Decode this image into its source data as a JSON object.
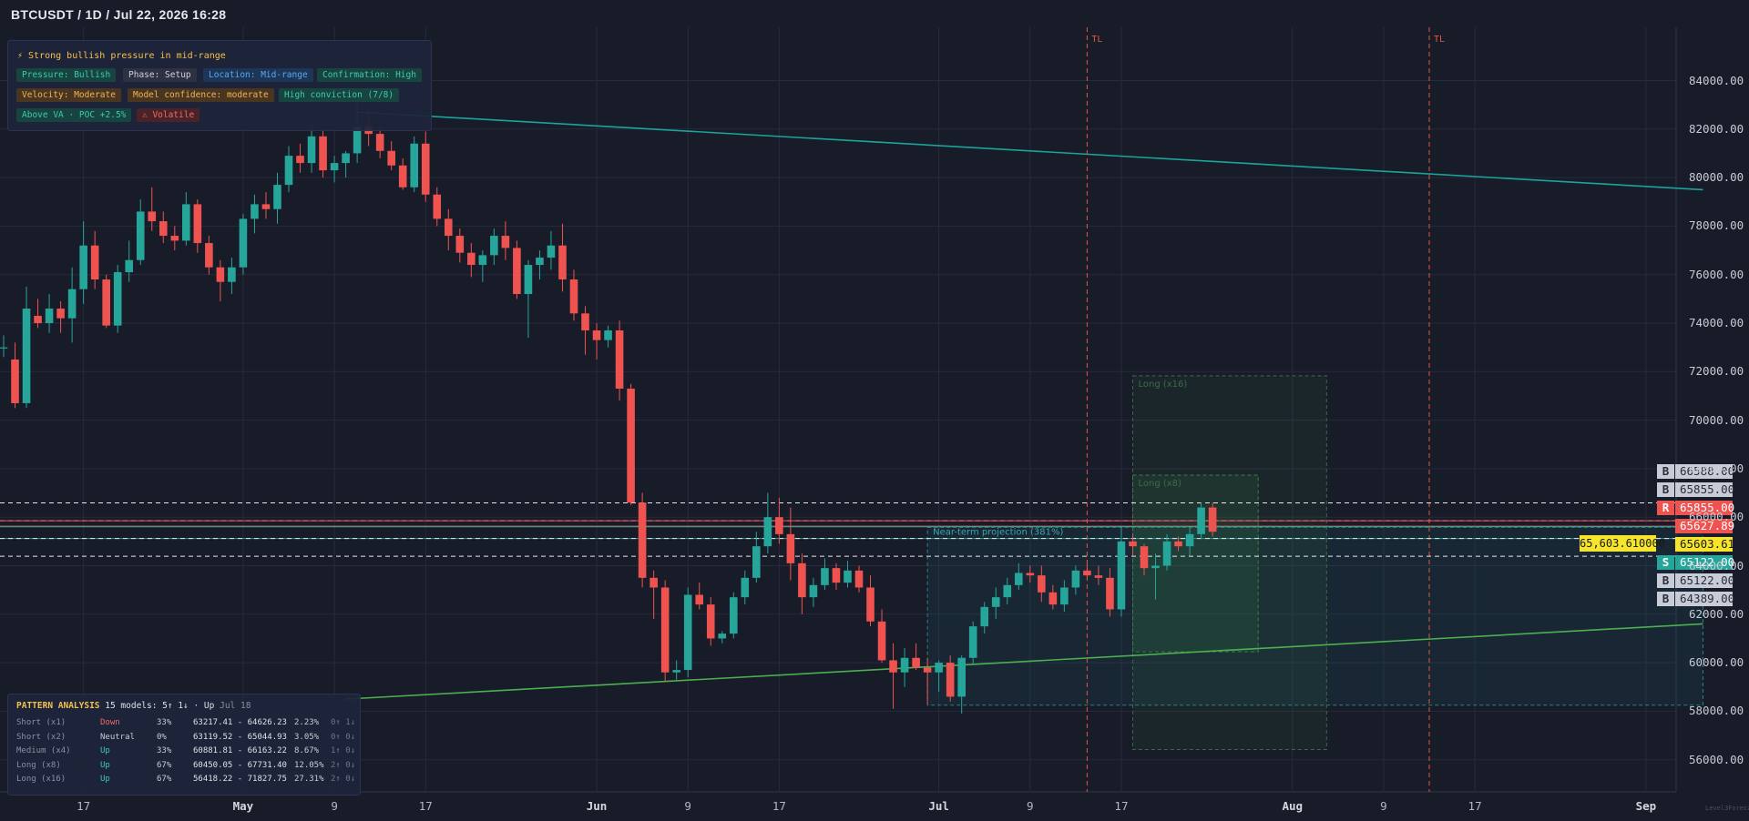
{
  "title": "BTCUSDT / 1D / Jul 22, 2026 16:28",
  "info": {
    "headline": "⚡  Strong bullish pressure in mid-range",
    "tags": [
      {
        "text": "Pressure: Bullish",
        "style": "teal"
      },
      {
        "text": "Phase: Setup",
        "style": "grey"
      },
      {
        "text": "Location: Mid-range",
        "style": "blue"
      },
      {
        "text": "Confirmation: High",
        "style": "teal"
      },
      {
        "text": "Velocity: Moderate",
        "style": "orange"
      },
      {
        "text": "Model confidence: moderate",
        "style": "orange"
      },
      {
        "text": "High conviction (7/8)",
        "style": "teal"
      },
      {
        "text": "Above VA · POC +2.5%",
        "style": "teal"
      },
      {
        "text": "⚠ Volatile",
        "style": "red"
      }
    ]
  },
  "pattern": {
    "label": "PATTERN ANALYSIS",
    "summary": "15 models: 5↑ 1↓ · Up",
    "date": "Jul 18",
    "rows": [
      {
        "name": "Short (x1)",
        "dir": "Down",
        "pct": "33%",
        "range": "63217.41 - 64626.23",
        "chg": "2.23%",
        "arrows": "0↑ 1↓"
      },
      {
        "name": "Short (x2)",
        "dir": "Neutral",
        "pct": "0%",
        "range": "63119.52 - 65044.93",
        "chg": "3.05%",
        "arrows": "0↑ 0↓"
      },
      {
        "name": "Medium (x4)",
        "dir": "Up",
        "pct": "33%",
        "range": "60881.81 - 66163.22",
        "chg": "8.67%",
        "arrows": "1↑ 0↓"
      },
      {
        "name": "Long (x8)",
        "dir": "Up",
        "pct": "67%",
        "range": "60450.05 - 67731.40",
        "chg": "12.05%",
        "arrows": "2↑ 0↓"
      },
      {
        "name": "Long (x16)",
        "dir": "Up",
        "pct": "67%",
        "range": "56418.22 - 71827.75",
        "chg": "27.31%",
        "arrows": "2↑ 0↓"
      }
    ]
  },
  "levels": [
    {
      "badge": "B",
      "value": "66588.00",
      "kind": "buy",
      "price": 66588
    },
    {
      "badge": "B",
      "value": "65855.00",
      "kind": "buy",
      "price": 65855
    },
    {
      "badge": "R",
      "value": "65855.00",
      "kind": "resistance",
      "price": 65855
    },
    {
      "badge": "",
      "value": "65627.89",
      "kind": "red",
      "price": 65627.89
    },
    {
      "badge": "",
      "value": "65603.61",
      "kind": "current",
      "price": 65603.61
    },
    {
      "badge": "S",
      "value": "65122.00",
      "kind": "support",
      "price": 65122
    },
    {
      "badge": "B",
      "value": "65122.00",
      "kind": "buy",
      "price": 65122
    },
    {
      "badge": "B",
      "value": "64389.00",
      "kind": "buy",
      "price": 64389
    }
  ],
  "crosshair_price": "65,603.610000",
  "tl_label": "TL",
  "projection_label": "Near-term projection (381%)",
  "long_x8_label": "Long (x8)",
  "long_x16_label": "Long (x16)",
  "watermark": "Level3Forecast.com",
  "colors": {
    "up": "#26a69a",
    "down": "#ef5350",
    "teal_line": "#1aa59a",
    "green_line": "#4caf50",
    "tl": "#e0583a"
  },
  "chart_data": {
    "type": "candlestick",
    "price_range": [
      55000,
      86000
    ],
    "y_ticks": [
      "84000.00",
      "82000.00",
      "80000.00",
      "78000.00",
      "76000.00",
      "74000.00",
      "72000.00",
      "70000.00",
      "68000.00",
      "66000.00",
      "64000.00",
      "62000.00",
      "60000.00",
      "58000.00",
      "56000.00"
    ],
    "x_ticks": [
      {
        "label": "17",
        "date": "2026-04-17",
        "bold": false
      },
      {
        "label": "May",
        "date": "2026-05-01",
        "bold": true
      },
      {
        "label": "9",
        "date": "2026-05-09",
        "bold": false
      },
      {
        "label": "17",
        "date": "2026-05-17",
        "bold": false
      },
      {
        "label": "Jun",
        "date": "2026-06-01",
        "bold": true
      },
      {
        "label": "9",
        "date": "2026-06-09",
        "bold": false
      },
      {
        "label": "17",
        "date": "2026-06-17",
        "bold": false
      },
      {
        "label": "Jul",
        "date": "2026-07-01",
        "bold": true
      },
      {
        "label": "9",
        "date": "2026-07-09",
        "bold": false
      },
      {
        "label": "17",
        "date": "2026-07-17",
        "bold": false
      },
      {
        "label": "Aug",
        "date": "2026-08-01",
        "bold": true
      },
      {
        "label": "9",
        "date": "2026-08-09",
        "bold": false
      },
      {
        "label": "17",
        "date": "2026-08-17",
        "bold": false
      },
      {
        "label": "Sep",
        "date": "2026-09-01",
        "bold": true
      }
    ],
    "candles": [
      {
        "date": "2026-04-10",
        "o": 73000,
        "h": 73500,
        "l": 72600,
        "c": 73000
      },
      {
        "date": "2026-04-11",
        "o": 72500,
        "h": 73200,
        "l": 70500,
        "c": 70700
      },
      {
        "date": "2026-04-12",
        "o": 70700,
        "h": 75500,
        "l": 70500,
        "c": 74600
      },
      {
        "date": "2026-04-13",
        "o": 74300,
        "h": 75000,
        "l": 73800,
        "c": 74000
      },
      {
        "date": "2026-04-14",
        "o": 74000,
        "h": 75200,
        "l": 73600,
        "c": 74600
      },
      {
        "date": "2026-04-15",
        "o": 74600,
        "h": 74900,
        "l": 73600,
        "c": 74200
      },
      {
        "date": "2026-04-16",
        "o": 74200,
        "h": 76300,
        "l": 73200,
        "c": 75400
      },
      {
        "date": "2026-04-17",
        "o": 75400,
        "h": 78200,
        "l": 74800,
        "c": 77200
      },
      {
        "date": "2026-04-18",
        "o": 77200,
        "h": 77800,
        "l": 75400,
        "c": 75800
      },
      {
        "date": "2026-04-19",
        "o": 75800,
        "h": 76000,
        "l": 73800,
        "c": 73900
      },
      {
        "date": "2026-04-20",
        "o": 73900,
        "h": 76400,
        "l": 73600,
        "c": 76100
      },
      {
        "date": "2026-04-21",
        "o": 76100,
        "h": 77400,
        "l": 75700,
        "c": 76600
      },
      {
        "date": "2026-04-22",
        "o": 76600,
        "h": 79100,
        "l": 76400,
        "c": 78600
      },
      {
        "date": "2026-04-23",
        "o": 78600,
        "h": 79600,
        "l": 77800,
        "c": 78200
      },
      {
        "date": "2026-04-24",
        "o": 78200,
        "h": 78600,
        "l": 77300,
        "c": 77600
      },
      {
        "date": "2026-04-25",
        "o": 77600,
        "h": 78000,
        "l": 77000,
        "c": 77400
      },
      {
        "date": "2026-04-26",
        "o": 77400,
        "h": 79400,
        "l": 77200,
        "c": 78900
      },
      {
        "date": "2026-04-27",
        "o": 78900,
        "h": 79100,
        "l": 76900,
        "c": 77300
      },
      {
        "date": "2026-04-28",
        "o": 77300,
        "h": 77600,
        "l": 76000,
        "c": 76300
      },
      {
        "date": "2026-04-29",
        "o": 76300,
        "h": 76600,
        "l": 74900,
        "c": 75700
      },
      {
        "date": "2026-04-30",
        "o": 75700,
        "h": 76700,
        "l": 75200,
        "c": 76300
      },
      {
        "date": "2026-05-01",
        "o": 76300,
        "h": 78500,
        "l": 76000,
        "c": 78300
      },
      {
        "date": "2026-05-02",
        "o": 78300,
        "h": 79300,
        "l": 77700,
        "c": 78900
      },
      {
        "date": "2026-05-03",
        "o": 78900,
        "h": 79400,
        "l": 78300,
        "c": 78700
      },
      {
        "date": "2026-05-04",
        "o": 78700,
        "h": 80200,
        "l": 78100,
        "c": 79700
      },
      {
        "date": "2026-05-05",
        "o": 79700,
        "h": 81300,
        "l": 79400,
        "c": 80900
      },
      {
        "date": "2026-05-06",
        "o": 80900,
        "h": 81400,
        "l": 80200,
        "c": 80600
      },
      {
        "date": "2026-05-07",
        "o": 80600,
        "h": 82300,
        "l": 80200,
        "c": 81700
      },
      {
        "date": "2026-05-08",
        "o": 81700,
        "h": 82000,
        "l": 80000,
        "c": 80300
      },
      {
        "date": "2026-05-09",
        "o": 80300,
        "h": 80900,
        "l": 79800,
        "c": 80600
      },
      {
        "date": "2026-05-10",
        "o": 80600,
        "h": 81100,
        "l": 80000,
        "c": 81000
      },
      {
        "date": "2026-05-11",
        "o": 81000,
        "h": 83500,
        "l": 80600,
        "c": 82100
      },
      {
        "date": "2026-05-12",
        "o": 82100,
        "h": 82700,
        "l": 81300,
        "c": 81800
      },
      {
        "date": "2026-05-13",
        "o": 81800,
        "h": 82100,
        "l": 80800,
        "c": 81100
      },
      {
        "date": "2026-05-14",
        "o": 81100,
        "h": 81500,
        "l": 80300,
        "c": 80500
      },
      {
        "date": "2026-05-15",
        "o": 80500,
        "h": 80800,
        "l": 79500,
        "c": 79600
      },
      {
        "date": "2026-05-16",
        "o": 79600,
        "h": 81700,
        "l": 79400,
        "c": 81400
      },
      {
        "date": "2026-05-17",
        "o": 81400,
        "h": 81900,
        "l": 79000,
        "c": 79300
      },
      {
        "date": "2026-05-18",
        "o": 79300,
        "h": 79600,
        "l": 78000,
        "c": 78300
      },
      {
        "date": "2026-05-19",
        "o": 78300,
        "h": 78700,
        "l": 77000,
        "c": 77600
      },
      {
        "date": "2026-05-20",
        "o": 77600,
        "h": 77900,
        "l": 76500,
        "c": 76900
      },
      {
        "date": "2026-05-21",
        "o": 76900,
        "h": 77300,
        "l": 75900,
        "c": 76400
      },
      {
        "date": "2026-05-22",
        "o": 76400,
        "h": 77000,
        "l": 75700,
        "c": 76800
      },
      {
        "date": "2026-05-23",
        "o": 76800,
        "h": 77900,
        "l": 76400,
        "c": 77600
      },
      {
        "date": "2026-05-24",
        "o": 77600,
        "h": 78200,
        "l": 76600,
        "c": 77100
      },
      {
        "date": "2026-05-25",
        "o": 77100,
        "h": 77400,
        "l": 75000,
        "c": 75200
      },
      {
        "date": "2026-05-26",
        "o": 75200,
        "h": 76600,
        "l": 73400,
        "c": 76400
      },
      {
        "date": "2026-05-27",
        "o": 76400,
        "h": 77000,
        "l": 75800,
        "c": 76700
      },
      {
        "date": "2026-05-28",
        "o": 76700,
        "h": 77800,
        "l": 76200,
        "c": 77200
      },
      {
        "date": "2026-05-29",
        "o": 77200,
        "h": 78100,
        "l": 75300,
        "c": 75800
      },
      {
        "date": "2026-05-30",
        "o": 75800,
        "h": 76200,
        "l": 74100,
        "c": 74400
      },
      {
        "date": "2026-05-31",
        "o": 74400,
        "h": 74700,
        "l": 72700,
        "c": 73700
      },
      {
        "date": "2026-06-01",
        "o": 73700,
        "h": 74000,
        "l": 72500,
        "c": 73300
      },
      {
        "date": "2026-06-02",
        "o": 73300,
        "h": 73900,
        "l": 73000,
        "c": 73700
      },
      {
        "date": "2026-06-03",
        "o": 73700,
        "h": 74100,
        "l": 70800,
        "c": 71300
      },
      {
        "date": "2026-06-04",
        "o": 71300,
        "h": 71500,
        "l": 66500,
        "c": 66600
      },
      {
        "date": "2026-06-05",
        "o": 66600,
        "h": 67000,
        "l": 63100,
        "c": 63500
      },
      {
        "date": "2026-06-06",
        "o": 63500,
        "h": 63800,
        "l": 61800,
        "c": 63100
      },
      {
        "date": "2026-06-07",
        "o": 63100,
        "h": 63400,
        "l": 59200,
        "c": 59600
      },
      {
        "date": "2026-06-08",
        "o": 59600,
        "h": 60100,
        "l": 59300,
        "c": 59700
      },
      {
        "date": "2026-06-09",
        "o": 59700,
        "h": 63100,
        "l": 59400,
        "c": 62800
      },
      {
        "date": "2026-06-10",
        "o": 62800,
        "h": 63300,
        "l": 62200,
        "c": 62400
      },
      {
        "date": "2026-06-11",
        "o": 62400,
        "h": 62700,
        "l": 60700,
        "c": 61000
      },
      {
        "date": "2026-06-12",
        "o": 61000,
        "h": 61300,
        "l": 60800,
        "c": 61200
      },
      {
        "date": "2026-06-13",
        "o": 61200,
        "h": 62900,
        "l": 61000,
        "c": 62700
      },
      {
        "date": "2026-06-14",
        "o": 62700,
        "h": 63800,
        "l": 62400,
        "c": 63500
      },
      {
        "date": "2026-06-15",
        "o": 63500,
        "h": 65400,
        "l": 63300,
        "c": 64800
      },
      {
        "date": "2026-06-16",
        "o": 64800,
        "h": 67000,
        "l": 64500,
        "c": 66000
      },
      {
        "date": "2026-06-17",
        "o": 66000,
        "h": 66800,
        "l": 64900,
        "c": 65300
      },
      {
        "date": "2026-06-18",
        "o": 65300,
        "h": 66400,
        "l": 63400,
        "c": 64100
      },
      {
        "date": "2026-06-19",
        "o": 64100,
        "h": 64500,
        "l": 62000,
        "c": 62700
      },
      {
        "date": "2026-06-20",
        "o": 62700,
        "h": 63500,
        "l": 62300,
        "c": 63200
      },
      {
        "date": "2026-06-21",
        "o": 63200,
        "h": 64300,
        "l": 63000,
        "c": 63900
      },
      {
        "date": "2026-06-22",
        "o": 63900,
        "h": 64100,
        "l": 63000,
        "c": 63300
      },
      {
        "date": "2026-06-23",
        "o": 63300,
        "h": 64200,
        "l": 63100,
        "c": 63800
      },
      {
        "date": "2026-06-24",
        "o": 63800,
        "h": 64000,
        "l": 62900,
        "c": 63100
      },
      {
        "date": "2026-06-25",
        "o": 63100,
        "h": 63600,
        "l": 61500,
        "c": 61700
      },
      {
        "date": "2026-06-26",
        "o": 61700,
        "h": 62200,
        "l": 60000,
        "c": 60100
      },
      {
        "date": "2026-06-27",
        "o": 60100,
        "h": 60800,
        "l": 58100,
        "c": 59600
      },
      {
        "date": "2026-06-28",
        "o": 59600,
        "h": 60600,
        "l": 59000,
        "c": 60200
      },
      {
        "date": "2026-06-29",
        "o": 60200,
        "h": 60800,
        "l": 59700,
        "c": 59800
      },
      {
        "date": "2026-06-30",
        "o": 59800,
        "h": 60200,
        "l": 58300,
        "c": 59600
      },
      {
        "date": "2026-07-01",
        "o": 59600,
        "h": 60100,
        "l": 58800,
        "c": 60000
      },
      {
        "date": "2026-07-02",
        "o": 60000,
        "h": 60300,
        "l": 58400,
        "c": 58600
      },
      {
        "date": "2026-07-03",
        "o": 58600,
        "h": 60300,
        "l": 57900,
        "c": 60200
      },
      {
        "date": "2026-07-04",
        "o": 60200,
        "h": 61700,
        "l": 59900,
        "c": 61500
      },
      {
        "date": "2026-07-05",
        "o": 61500,
        "h": 62500,
        "l": 61200,
        "c": 62300
      },
      {
        "date": "2026-07-06",
        "o": 62300,
        "h": 63100,
        "l": 61800,
        "c": 62700
      },
      {
        "date": "2026-07-07",
        "o": 62700,
        "h": 63500,
        "l": 62400,
        "c": 63200
      },
      {
        "date": "2026-07-08",
        "o": 63200,
        "h": 64100,
        "l": 63000,
        "c": 63700
      },
      {
        "date": "2026-07-09",
        "o": 63700,
        "h": 64000,
        "l": 63300,
        "c": 63600
      },
      {
        "date": "2026-07-10",
        "o": 63600,
        "h": 64000,
        "l": 62500,
        "c": 62900
      },
      {
        "date": "2026-07-11",
        "o": 62900,
        "h": 63200,
        "l": 62200,
        "c": 62400
      },
      {
        "date": "2026-07-12",
        "o": 62400,
        "h": 63400,
        "l": 62100,
        "c": 63100
      },
      {
        "date": "2026-07-13",
        "o": 63100,
        "h": 64000,
        "l": 62800,
        "c": 63800
      },
      {
        "date": "2026-07-14",
        "o": 63800,
        "h": 64100,
        "l": 63500,
        "c": 63600
      },
      {
        "date": "2026-07-15",
        "o": 63600,
        "h": 64000,
        "l": 63200,
        "c": 63500
      },
      {
        "date": "2026-07-16",
        "o": 63500,
        "h": 63900,
        "l": 61900,
        "c": 62200
      },
      {
        "date": "2026-07-17",
        "o": 62200,
        "h": 65600,
        "l": 61900,
        "c": 65000
      },
      {
        "date": "2026-07-18",
        "o": 65000,
        "h": 65300,
        "l": 64400,
        "c": 64800
      },
      {
        "date": "2026-07-19",
        "o": 64800,
        "h": 64900,
        "l": 63600,
        "c": 63900
      },
      {
        "date": "2026-07-20",
        "o": 63900,
        "h": 64500,
        "l": 62600,
        "c": 64000
      },
      {
        "date": "2026-07-21",
        "o": 64000,
        "h": 65300,
        "l": 63800,
        "c": 65000
      },
      {
        "date": "2026-07-22",
        "o": 65000,
        "h": 65200,
        "l": 64600,
        "c": 64800
      },
      {
        "date": "2026-07-23",
        "o": 64800,
        "h": 65600,
        "l": 64400,
        "c": 65300
      },
      {
        "date": "2026-07-24",
        "o": 65300,
        "h": 66600,
        "l": 65100,
        "c": 66400
      },
      {
        "date": "2026-07-25",
        "o": 66400,
        "h": 66600,
        "l": 65200,
        "c": 65400
      }
    ],
    "trendlines": [
      {
        "name": "descending",
        "from": {
          "date": "2026-05-11",
          "price": 82700
        },
        "to": {
          "date": "2026-09-06",
          "price": 79500
        }
      },
      {
        "name": "ascending",
        "from": {
          "date": "2026-05-10",
          "price": 58500
        },
        "to": {
          "date": "2026-09-06",
          "price": 61600
        }
      }
    ],
    "tl_dates": [
      "2026-07-14",
      "2026-08-13"
    ],
    "zones": [
      {
        "name": "projection",
        "from": "2026-06-30",
        "to": "2026-09-06",
        "top": 65580,
        "bottom": 58250
      },
      {
        "name": "long-x16",
        "from": "2026-07-18",
        "to": "2026-08-04",
        "top": 71827.75,
        "bottom": 56418.22
      },
      {
        "name": "long-x8",
        "from": "2026-07-18",
        "to": "2026-07-29",
        "top": 67731.4,
        "bottom": 60450.05
      }
    ]
  }
}
